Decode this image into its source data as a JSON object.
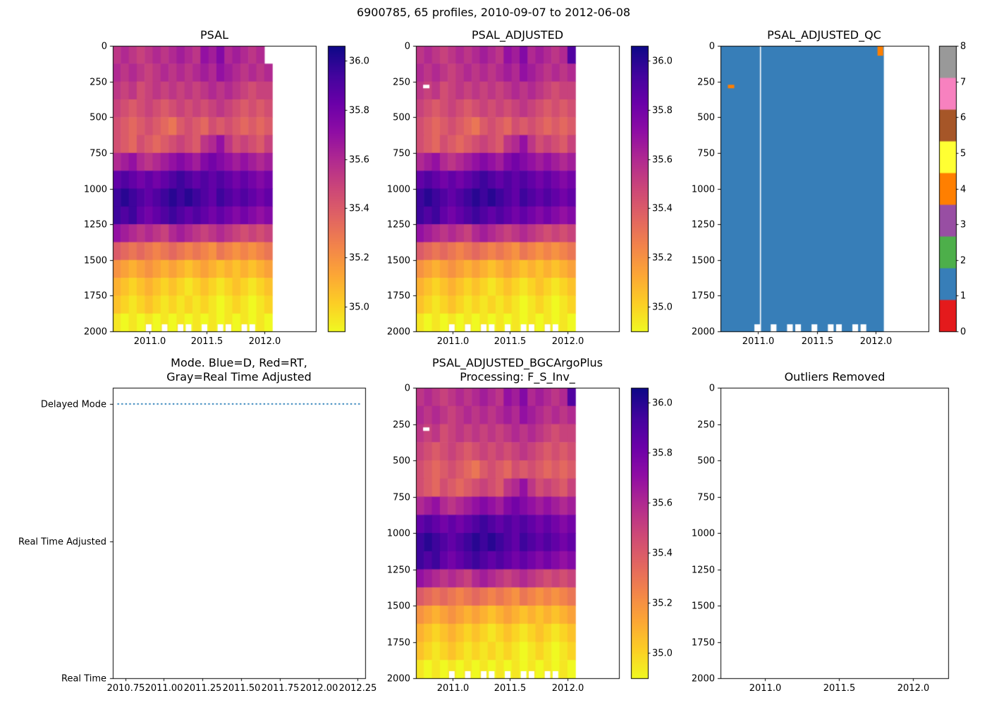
{
  "suptitle": "6900785, 65 profiles, 2010-09-07 to 2012-06-08",
  "platform_id": "6900785",
  "n_profiles": 65,
  "date_range": "2010-09-07 to 2012-06-08",
  "palette": {
    "background": "#ffffff",
    "axis_color": "#000000",
    "mode_line_color": "#1f77b4",
    "plasma_stops": [
      [
        0.0,
        "#0d0887"
      ],
      [
        0.1,
        "#41049d"
      ],
      [
        0.2,
        "#6a00a8"
      ],
      [
        0.3,
        "#8f0da4"
      ],
      [
        0.4,
        "#b12a90"
      ],
      [
        0.5,
        "#cc4778"
      ],
      [
        0.6,
        "#e16462"
      ],
      [
        0.7,
        "#f2844b"
      ],
      [
        0.8,
        "#fca636"
      ],
      [
        0.9,
        "#fcce25"
      ],
      [
        1.0,
        "#f0f921"
      ]
    ],
    "qc_colors": [
      "#e41a1c",
      "#377eb8",
      "#4daf4a",
      "#984ea3",
      "#ff7f00",
      "#ffff33",
      "#a65628",
      "#f781bf",
      "#999999"
    ]
  },
  "salinity_grid": {
    "time_start": 2010.68,
    "time_end": 2012.07,
    "depth_start": 0,
    "depth_end": 2000,
    "units": "PSU",
    "values": [
      [
        35.55,
        35.6,
        35.55,
        35.5,
        35.55,
        35.6,
        35.55,
        35.6,
        35.65,
        35.6,
        35.55,
        35.7,
        35.65,
        35.75,
        35.6,
        35.65,
        35.6,
        35.55,
        35.6,
        35.9
      ],
      [
        35.6,
        35.55,
        35.6,
        35.55,
        35.5,
        35.55,
        35.6,
        35.55,
        35.6,
        35.55,
        35.6,
        35.65,
        35.6,
        35.7,
        35.65,
        35.6,
        35.55,
        35.6,
        35.55,
        35.6
      ],
      [
        35.55,
        35.5,
        35.55,
        35.45,
        35.5,
        35.55,
        35.5,
        35.55,
        35.5,
        35.55,
        35.5,
        35.55,
        35.6,
        35.55,
        35.6,
        35.55,
        35.5,
        35.45,
        35.5,
        35.5
      ],
      [
        35.5,
        35.45,
        35.4,
        35.45,
        35.5,
        35.45,
        35.4,
        35.45,
        35.5,
        35.45,
        35.5,
        35.45,
        35.5,
        35.55,
        35.5,
        35.45,
        35.4,
        35.45,
        35.4,
        35.45
      ],
      [
        35.45,
        35.4,
        35.35,
        35.4,
        35.45,
        35.4,
        35.35,
        35.3,
        35.4,
        35.45,
        35.4,
        35.35,
        35.45,
        35.4,
        35.45,
        35.4,
        35.35,
        35.4,
        35.35,
        35.4
      ],
      [
        35.45,
        35.4,
        35.35,
        35.45,
        35.4,
        35.35,
        35.4,
        35.45,
        35.5,
        35.45,
        35.4,
        35.55,
        35.6,
        35.7,
        35.55,
        35.45,
        35.5,
        35.45,
        35.4,
        35.5
      ],
      [
        35.6,
        35.65,
        35.7,
        35.6,
        35.55,
        35.6,
        35.65,
        35.7,
        35.75,
        35.7,
        35.65,
        35.75,
        35.8,
        35.75,
        35.7,
        35.65,
        35.7,
        35.65,
        35.6,
        35.65
      ],
      [
        35.85,
        35.9,
        35.85,
        35.8,
        35.85,
        35.8,
        35.85,
        35.9,
        35.95,
        35.9,
        35.85,
        35.9,
        35.85,
        35.9,
        35.85,
        35.8,
        35.85,
        35.8,
        35.75,
        35.8
      ],
      [
        35.95,
        36.0,
        35.95,
        35.9,
        35.85,
        35.9,
        35.95,
        36.0,
        35.95,
        36.0,
        35.95,
        35.9,
        35.85,
        35.95,
        35.9,
        35.85,
        35.9,
        35.85,
        35.8,
        35.85
      ],
      [
        35.95,
        35.9,
        35.95,
        35.85,
        35.8,
        35.85,
        35.9,
        35.95,
        35.9,
        35.85,
        35.9,
        35.85,
        35.8,
        35.85,
        35.8,
        35.75,
        35.8,
        35.75,
        35.7,
        35.75
      ],
      [
        35.7,
        35.65,
        35.6,
        35.55,
        35.6,
        35.55,
        35.5,
        35.6,
        35.65,
        35.6,
        35.55,
        35.5,
        35.55,
        35.6,
        35.55,
        35.5,
        35.45,
        35.5,
        35.45,
        35.5
      ],
      [
        35.4,
        35.35,
        35.3,
        35.35,
        35.3,
        35.25,
        35.3,
        35.35,
        35.3,
        35.25,
        35.3,
        35.25,
        35.2,
        35.3,
        35.25,
        35.2,
        35.25,
        35.2,
        35.25,
        35.3
      ],
      [
        35.2,
        35.15,
        35.1,
        35.15,
        35.2,
        35.15,
        35.1,
        35.15,
        35.1,
        35.05,
        35.1,
        35.15,
        35.1,
        35.05,
        35.1,
        35.05,
        35.1,
        35.05,
        35.1,
        35.15
      ],
      [
        35.1,
        35.05,
        35.0,
        35.05,
        35.1,
        35.05,
        35.0,
        35.05,
        35.0,
        34.95,
        35.0,
        35.05,
        35.0,
        34.95,
        35.0,
        35.05,
        35.0,
        34.95,
        35.0,
        35.05
      ],
      [
        35.05,
        35.0,
        34.95,
        35.0,
        35.05,
        35.0,
        34.95,
        35.0,
        34.95,
        35.0,
        34.95,
        35.0,
        34.95,
        34.9,
        34.95,
        35.0,
        34.95,
        34.9,
        34.95,
        35.0
      ],
      [
        34.95,
        34.9,
        34.95,
        34.9,
        34.95,
        34.9,
        34.95,
        34.9,
        34.95,
        34.9,
        34.95,
        34.9,
        34.95,
        34.9,
        34.95,
        34.9,
        34.95,
        34.9,
        34.95,
        34.9
      ]
    ]
  },
  "chart_data": [
    {
      "id": "psal",
      "type": "heatmap",
      "title": "PSAL",
      "x_range": [
        2010.68,
        2012.45
      ],
      "y_range": [
        0,
        2000
      ],
      "x_tick_values": [
        2011.0,
        2011.5,
        2012.0
      ],
      "x_tick_labels": [
        "2011.0",
        "2011.5",
        "2012.0"
      ],
      "y_ticks": [
        0,
        250,
        500,
        750,
        1000,
        1250,
        1500,
        1750,
        2000
      ],
      "colorbar": {
        "type": "continuous",
        "vmin": 34.9,
        "vmax": 36.06,
        "ticks": [
          35.0,
          35.2,
          35.4,
          35.6,
          35.8,
          36.0
        ]
      },
      "overrides": [
        {
          "row": 0,
          "col": 19,
          "value": null
        }
      ],
      "bottom_gap_cols": [
        4,
        6,
        8,
        9,
        11,
        13,
        14,
        16,
        17
      ],
      "marks": []
    },
    {
      "id": "psal_adjusted",
      "type": "heatmap",
      "title": "PSAL_ADJUSTED",
      "x_range": [
        2010.68,
        2012.45
      ],
      "y_range": [
        0,
        2000
      ],
      "x_tick_values": [
        2011.0,
        2011.5,
        2012.0
      ],
      "x_tick_labels": [
        "2011.0",
        "2011.5",
        "2012.0"
      ],
      "y_ticks": [
        0,
        250,
        500,
        750,
        1000,
        1250,
        1500,
        1750,
        2000
      ],
      "colorbar": {
        "type": "continuous",
        "vmin": 34.9,
        "vmax": 36.06,
        "ticks": [
          35.0,
          35.2,
          35.4,
          35.6,
          35.8,
          36.0
        ]
      },
      "overrides": [],
      "bottom_gap_cols": [
        4,
        6,
        8,
        9,
        11,
        13,
        14,
        16,
        17
      ],
      "marks": [
        {
          "time": 2010.77,
          "depth": 285,
          "color": "#ffffff",
          "w": 9,
          "h": 5
        }
      ]
    },
    {
      "id": "qc",
      "type": "qc_heatmap",
      "title": "PSAL_ADJUSTED_QC",
      "x_range": [
        2010.68,
        2012.45
      ],
      "y_range": [
        0,
        2000
      ],
      "data_time_end": 2012.07,
      "fill_value": 1,
      "cols": 20,
      "gap_time": 2011.02,
      "x_tick_values": [
        2011.0,
        2011.5,
        2012.0
      ],
      "x_tick_labels": [
        "2011.0",
        "2011.5",
        "2012.0"
      ],
      "y_ticks": [
        0,
        250,
        500,
        750,
        1000,
        1250,
        1500,
        1750,
        2000
      ],
      "colorbar": {
        "type": "discrete",
        "ticks": [
          0,
          1,
          2,
          3,
          4,
          5,
          6,
          7,
          8
        ]
      },
      "bottom_gap_cols": [
        4,
        6,
        8,
        9,
        11,
        13,
        14,
        16,
        17
      ],
      "marks": [
        {
          "time": 2012.04,
          "depth": 25,
          "value": 4,
          "w": 8,
          "h": 13
        },
        {
          "time": 2010.77,
          "depth": 285,
          "value": 4,
          "w": 9,
          "h": 5
        }
      ]
    },
    {
      "id": "mode",
      "type": "categorical_line",
      "title": "Mode. Blue=D, Red=RT,\nGray=Real Time Adjusted",
      "x_range": [
        2010.67,
        2012.3
      ],
      "y_categories": [
        "Delayed Mode",
        "Real Time Adjusted",
        "Real Time"
      ],
      "x_tick_values": [
        2010.75,
        2011.0,
        2011.25,
        2011.5,
        2011.75,
        2012.0,
        2012.25
      ],
      "x_tick_labels": [
        "2010.75",
        "2011.00",
        "2011.25",
        "2011.50",
        "2011.75",
        "2012.00",
        "2012.25"
      ],
      "line": {
        "category": "Delayed Mode",
        "category_index": 0,
        "x_start": 2010.7,
        "x_end": 2012.27,
        "style": "dotted"
      }
    },
    {
      "id": "bgc",
      "type": "heatmap",
      "title": "PSAL_ADJUSTED_BGCArgoPlus\nProcessing: F_S_Inv_",
      "x_range": [
        2010.68,
        2012.45
      ],
      "y_range": [
        0,
        2000
      ],
      "x_tick_values": [
        2011.0,
        2011.5,
        2012.0
      ],
      "x_tick_labels": [
        "2011.0",
        "2011.5",
        "2012.0"
      ],
      "y_ticks": [
        0,
        250,
        500,
        750,
        1000,
        1250,
        1500,
        1750,
        2000
      ],
      "colorbar": {
        "type": "continuous",
        "vmin": 34.9,
        "vmax": 36.06,
        "ticks": [
          35.0,
          35.2,
          35.4,
          35.6,
          35.8,
          36.0
        ]
      },
      "overrides": [],
      "bottom_gap_cols": [
        4,
        6,
        8,
        9,
        11,
        13,
        14,
        16,
        17
      ],
      "marks": [
        {
          "time": 2010.77,
          "depth": 285,
          "color": "#ffffff",
          "w": 9,
          "h": 5
        }
      ]
    },
    {
      "id": "outliers",
      "type": "empty",
      "title": "Outliers Removed",
      "x_range": [
        2010.7,
        2012.24
      ],
      "y_range": [
        0,
        2000
      ],
      "x_tick_values": [
        2011.0,
        2011.5,
        2012.0
      ],
      "x_tick_labels": [
        "2011.0",
        "2011.5",
        "2012.0"
      ],
      "y_ticks": [
        0,
        250,
        500,
        750,
        1000,
        1250,
        1500,
        1750,
        2000
      ]
    }
  ]
}
